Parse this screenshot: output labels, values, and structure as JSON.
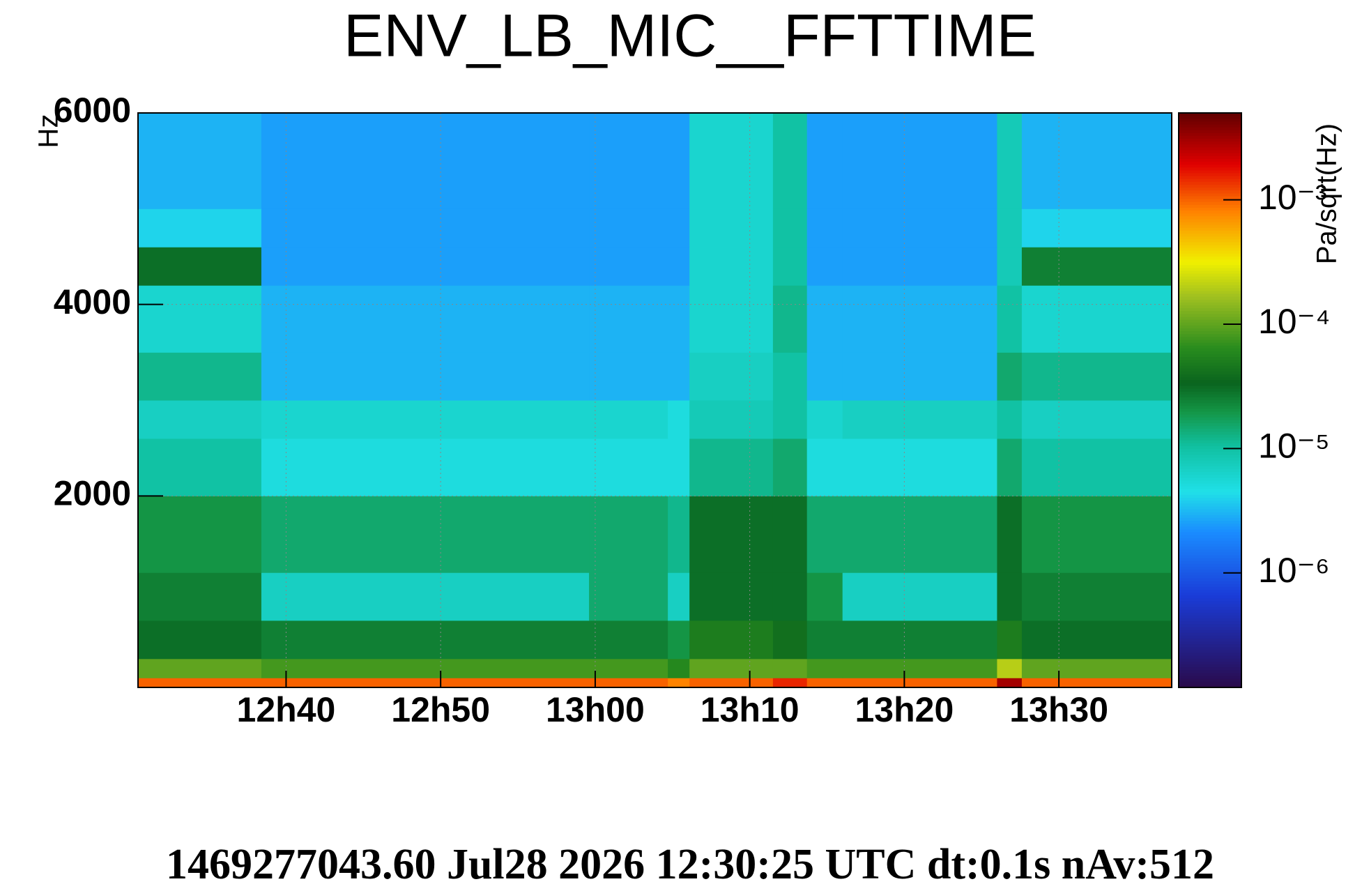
{
  "chart_data": {
    "type": "heatmap",
    "title": "ENV_LB_MIC__FFTTIME",
    "ylabel": "Hz",
    "zlabel": "Pa/sqrt(Hz)",
    "footer": "1469277043.60 Jul28 2026 12:30:25 UTC dt:0.1s nAv:512",
    "xlim": [
      750.42,
      817.3
    ],
    "xticks": [
      {
        "value": 760,
        "label": "12h40"
      },
      {
        "value": 770,
        "label": "12h50"
      },
      {
        "value": 780,
        "label": "13h00"
      },
      {
        "value": 790,
        "label": "13h10"
      },
      {
        "value": 800,
        "label": "13h20"
      },
      {
        "value": 810,
        "label": "13h30"
      }
    ],
    "ylim": [
      0,
      6000
    ],
    "yticks": [
      2000,
      4000,
      6000
    ],
    "zlim": [
      1.2e-07,
      0.005
    ],
    "zlog": true,
    "zticks": [
      {
        "value": 0.001,
        "label": "10⁻³"
      },
      {
        "value": 0.0001,
        "label": "10⁻⁴"
      },
      {
        "value": 1e-05,
        "label": "10⁻⁵"
      },
      {
        "value": 1e-06,
        "label": "10⁻⁶"
      }
    ],
    "grid": true,
    "xbins": [
      750.42,
      758.4,
      779.6,
      784.7,
      786.1,
      791.5,
      793.7,
      796,
      806,
      807.6,
      817.3
    ],
    "ybins": [
      0,
      100,
      300,
      700,
      1200,
      2000,
      2600,
      3000,
      3500,
      4200,
      4600,
      5000,
      6000
    ],
    "z": [
      [
        0.001,
        0.001,
        0.001,
        0.0008,
        0.001,
        0.0015,
        0.001,
        0.001,
        0.003,
        0.001
      ],
      [
        0.0001,
        8e-05,
        8e-05,
        6e-05,
        0.0001,
        0.0001,
        8e-05,
        8e-05,
        0.0002,
        0.0001
      ],
      [
        3e-05,
        2.5e-05,
        2.5e-05,
        2e-05,
        5e-05,
        4e-05,
        2.5e-05,
        2.5e-05,
        5e-05,
        3e-05
      ],
      [
        2.5e-05,
        7e-06,
        1.5e-05,
        7e-06,
        3e-05,
        3e-05,
        2e-05,
        7e-06,
        3e-05,
        2.5e-05
      ],
      [
        2e-05,
        1.5e-05,
        1.5e-05,
        1.2e-05,
        3e-05,
        3e-05,
        1.5e-05,
        1.5e-05,
        3e-05,
        2e-05
      ],
      [
        1e-05,
        5e-06,
        5e-06,
        5e-06,
        1.2e-05,
        1.5e-05,
        5e-06,
        5e-06,
        1.5e-05,
        1e-05
      ],
      [
        7e-06,
        6e-06,
        6e-06,
        5e-06,
        8e-06,
        1e-05,
        6e-06,
        7e-06,
        1e-05,
        7e-06
      ],
      [
        1.2e-05,
        3e-06,
        3e-06,
        3e-06,
        7e-06,
        1e-05,
        3e-06,
        3e-06,
        1.5e-05,
        1.2e-05
      ],
      [
        6e-06,
        3e-06,
        3e-06,
        3e-06,
        6e-06,
        1.2e-05,
        3e-06,
        3e-06,
        1e-05,
        6e-06
      ],
      [
        3e-05,
        2.5e-06,
        2.5e-06,
        2.5e-06,
        6e-06,
        1e-05,
        2.5e-06,
        2.5e-06,
        8e-06,
        2.5e-05
      ],
      [
        4e-06,
        2.5e-06,
        2.5e-06,
        2.5e-06,
        6e-06,
        1e-05,
        2.5e-06,
        2.5e-06,
        8e-06,
        4e-06
      ],
      [
        3e-06,
        2.5e-06,
        2.5e-06,
        2.5e-06,
        6e-06,
        1e-05,
        2.5e-06,
        2.5e-06,
        8e-06,
        3e-06
      ]
    ]
  }
}
